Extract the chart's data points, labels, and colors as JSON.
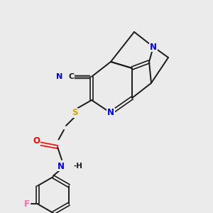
{
  "background_color": "#ebebeb",
  "bond_color": "#1a1a1a",
  "atom_colors": {
    "N": "#0000ee",
    "O": "#ff0000",
    "S": "#ccaa00",
    "F": "#ff69b4",
    "C": "#1a1a1a"
  },
  "figsize": [
    3.0,
    3.0
  ],
  "dpi": 100
}
